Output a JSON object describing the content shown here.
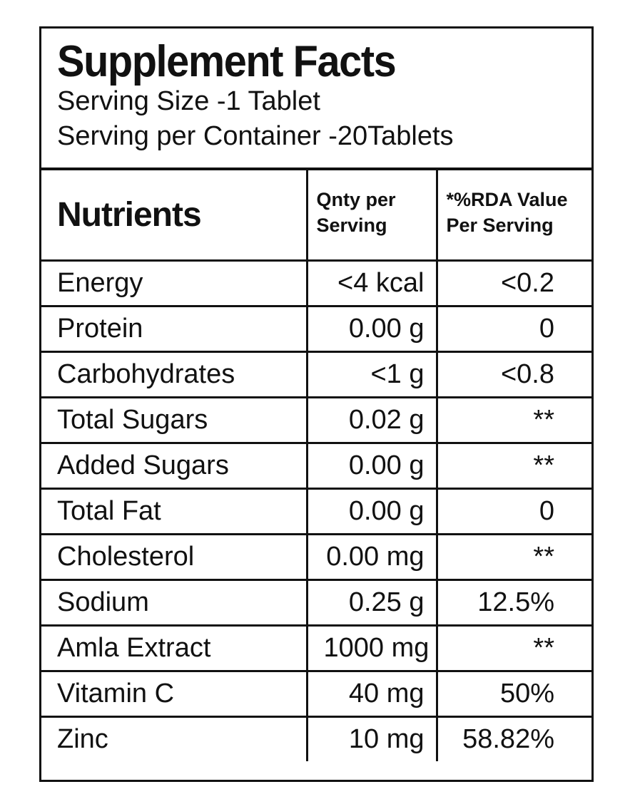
{
  "header": {
    "title": "Supplement Facts",
    "serving_size": "Serving Size -1 Tablet",
    "servings_per_container": "Serving per Container -20Tablets"
  },
  "table": {
    "columns": [
      "Nutrients",
      "Qnty per Serving",
      "*%RDA Value Per Serving"
    ],
    "rows": [
      [
        "Energy",
        "<4 kcal",
        "<0.2"
      ],
      [
        "Protein",
        "0.00 g",
        "0"
      ],
      [
        "Carbohydrates",
        "<1 g",
        "<0.8"
      ],
      [
        "Total Sugars",
        "0.02 g",
        "**"
      ],
      [
        "Added Sugars",
        "0.00 g",
        "**"
      ],
      [
        "Total Fat",
        "0.00 g",
        "0"
      ],
      [
        "Cholesterol",
        "0.00 mg",
        "**"
      ],
      [
        "Sodium",
        "0.25 g",
        "12.5%"
      ],
      [
        "Amla Extract",
        "1000 mg",
        "**"
      ],
      [
        "Vitamin C",
        "40 mg",
        "50%"
      ],
      [
        "Zinc",
        "10 mg",
        "58.82%"
      ]
    ]
  }
}
